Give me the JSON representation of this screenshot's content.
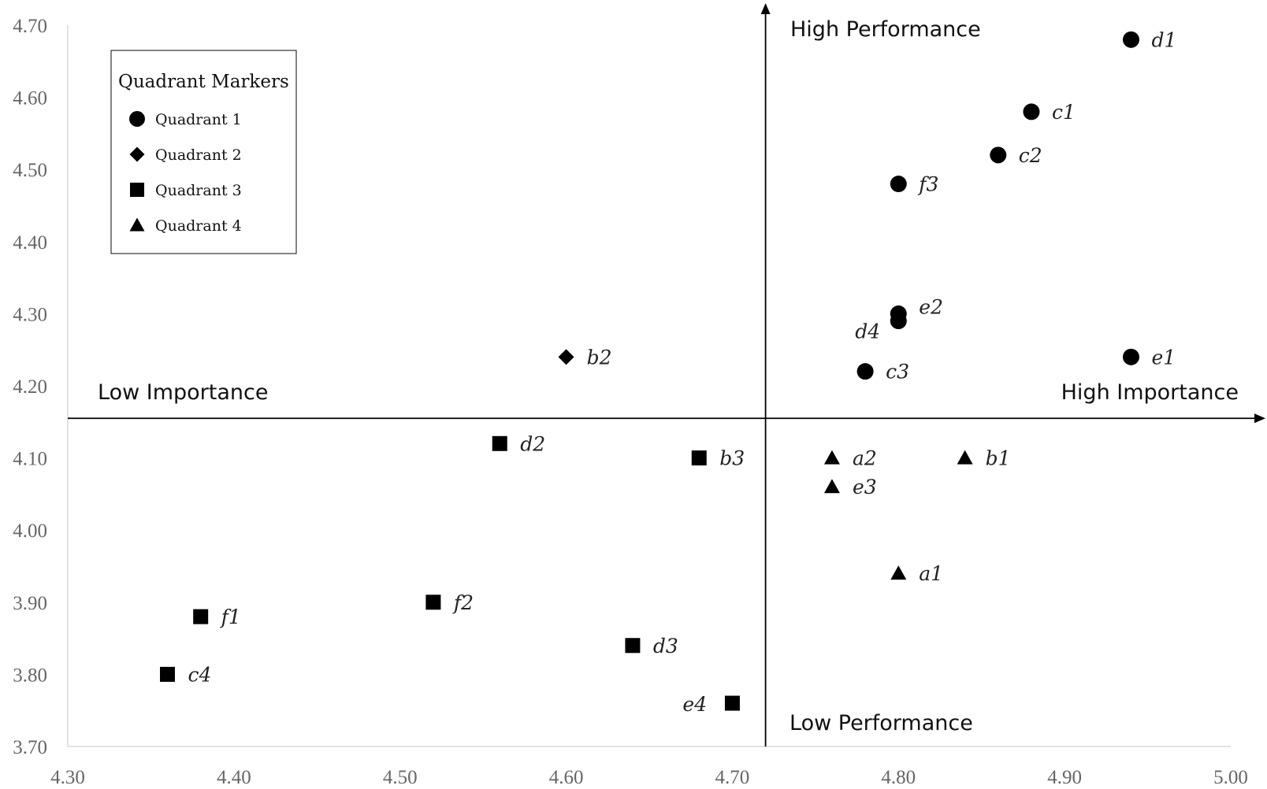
{
  "chart_data": {
    "type": "scatter",
    "title": "",
    "xlabel": "",
    "ylabel": "",
    "xlim": [
      4.3,
      5.0
    ],
    "ylim": [
      3.7,
      4.7
    ],
    "x_ticks": [
      "4.30",
      "4.40",
      "4.50",
      "4.60",
      "4.70",
      "4.80",
      "4.90",
      "5.00"
    ],
    "y_ticks": [
      "3.70",
      "3.80",
      "3.90",
      "4.00",
      "4.10",
      "4.20",
      "4.30",
      "4.40",
      "4.50",
      "4.60",
      "4.70"
    ],
    "axis_cross": {
      "x": 4.72,
      "y": 4.155
    },
    "quadrant_labels": {
      "top": "High Performance",
      "bottom": "Low Performance",
      "left": "Low Importance",
      "right": "High Importance"
    },
    "legend": {
      "title": "Quadrant Markers",
      "placement": "top-left",
      "entries": [
        {
          "label": "Quadrant 1",
          "marker": "circle"
        },
        {
          "label": "Quadrant 2",
          "marker": "diamond"
        },
        {
          "label": "Quadrant 3",
          "marker": "square"
        },
        {
          "label": "Quadrant 4",
          "marker": "triangle"
        }
      ]
    },
    "series": [
      {
        "marker": "circle",
        "points": [
          {
            "label": "d1",
            "x": 4.94,
            "y": 4.68
          },
          {
            "label": "c1",
            "x": 4.88,
            "y": 4.58
          },
          {
            "label": "c2",
            "x": 4.86,
            "y": 4.52
          },
          {
            "label": "f3",
            "x": 4.8,
            "y": 4.48
          },
          {
            "label": "e2",
            "x": 4.8,
            "y": 4.3
          },
          {
            "label": "d4",
            "x": 4.8,
            "y": 4.29
          },
          {
            "label": "c3",
            "x": 4.78,
            "y": 4.22
          },
          {
            "label": "e1",
            "x": 4.94,
            "y": 4.24
          }
        ]
      },
      {
        "marker": "diamond",
        "points": [
          {
            "label": "b2",
            "x": 4.6,
            "y": 4.24
          }
        ]
      },
      {
        "marker": "square",
        "points": [
          {
            "label": "d2",
            "x": 4.56,
            "y": 4.12
          },
          {
            "label": "b3",
            "x": 4.68,
            "y": 4.1
          },
          {
            "label": "f2",
            "x": 4.52,
            "y": 3.9
          },
          {
            "label": "f1",
            "x": 4.38,
            "y": 3.88
          },
          {
            "label": "d3",
            "x": 4.64,
            "y": 3.84
          },
          {
            "label": "c4",
            "x": 4.36,
            "y": 3.8
          },
          {
            "label": "e4",
            "x": 4.7,
            "y": 3.76
          }
        ]
      },
      {
        "marker": "triangle",
        "points": [
          {
            "label": "a2",
            "x": 4.76,
            "y": 4.1
          },
          {
            "label": "b1",
            "x": 4.84,
            "y": 4.1
          },
          {
            "label": "e3",
            "x": 4.76,
            "y": 4.06
          },
          {
            "label": "a1",
            "x": 4.8,
            "y": 3.94
          }
        ]
      }
    ],
    "grid": false
  }
}
